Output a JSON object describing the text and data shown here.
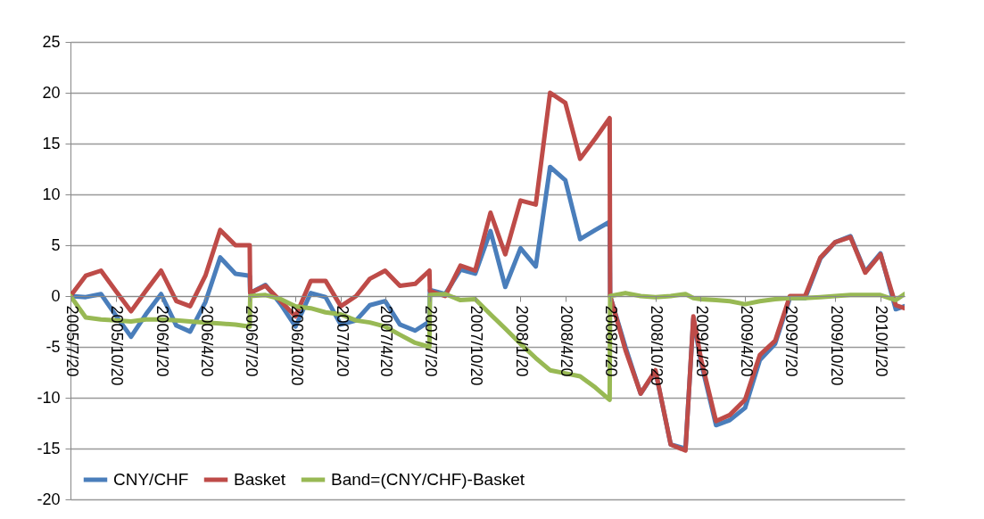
{
  "chart_data": {
    "type": "line",
    "x": [
      "2005-07-20",
      "2005-08-20",
      "2005-09-20",
      "2005-10-20",
      "2005-11-20",
      "2005-12-20",
      "2006-01-20",
      "2006-02-20",
      "2006-03-20",
      "2006-04-20",
      "2006-05-20",
      "2006-06-20",
      "2006-07-19",
      "2006-07-20",
      "2006-08-20",
      "2006-09-20",
      "2006-10-20",
      "2006-11-20",
      "2006-12-20",
      "2007-01-20",
      "2007-02-20",
      "2007-03-20",
      "2007-04-20",
      "2007-05-20",
      "2007-06-20",
      "2007-07-19",
      "2007-07-20",
      "2007-08-20",
      "2007-09-20",
      "2007-10-20",
      "2007-11-20",
      "2007-12-20",
      "2008-01-20",
      "2008-02-20",
      "2008-03-20",
      "2008-04-20",
      "2008-05-20",
      "2008-06-20",
      "2008-07-19",
      "2008-07-20",
      "2008-08-20",
      "2008-09-20",
      "2008-10-20",
      "2008-11-20",
      "2008-12-20",
      "2009-01-05",
      "2009-01-20",
      "2009-02-20",
      "2009-03-20",
      "2009-04-20",
      "2009-05-20",
      "2009-06-20",
      "2009-07-20",
      "2009-08-20",
      "2009-09-20",
      "2009-10-20",
      "2009-11-20",
      "2009-12-20",
      "2010-01-20",
      "2010-02-20",
      "2010-03-10"
    ],
    "series": [
      {
        "name": "CNY/CHF",
        "color": "#4a7ebb",
        "values": [
          0,
          -0.1,
          0.2,
          -1.9,
          -4.0,
          -1.8,
          0.2,
          -2.9,
          -3.5,
          -0.6,
          3.8,
          2.2,
          2.0,
          0.3,
          1.1,
          -0.8,
          -3.0,
          0.3,
          -0.1,
          -2.8,
          -2.4,
          -0.9,
          -0.5,
          -2.8,
          -3.4,
          -2.5,
          0.6,
          0.2,
          2.6,
          2.2,
          6.4,
          0.9,
          4.7,
          2.9,
          12.7,
          11.4,
          5.6,
          6.5,
          7.3,
          0,
          -5.0,
          -9.6,
          -7.4,
          -14.6,
          -15.0,
          -2.2,
          -6.4,
          -12.7,
          -12.2,
          -11.0,
          -6.3,
          -4.7,
          -0.2,
          -0.2,
          3.7,
          5.3,
          5.9,
          2.4,
          4.2,
          -1.3,
          -1.0
        ]
      },
      {
        "name": "Basket",
        "color": "#be4b48",
        "values": [
          0,
          2.0,
          2.5,
          0.5,
          -1.5,
          0.5,
          2.5,
          -0.5,
          -1.0,
          2,
          6.5,
          5,
          5,
          0.3,
          1,
          -0.5,
          -2,
          1.5,
          1.5,
          -1,
          0,
          1.7,
          2.5,
          1,
          1.2,
          2.5,
          0.5,
          0,
          3,
          2.5,
          8.2,
          4.1,
          9.4,
          9,
          20,
          19,
          13.5,
          15.5,
          17.5,
          0,
          -5.3,
          -9.6,
          -7.3,
          -14.6,
          -15.2,
          -2,
          -6.1,
          -12.3,
          -11.7,
          -10.2,
          -5.8,
          -4.4,
          0,
          0,
          3.8,
          5.3,
          5.8,
          2.3,
          4.1,
          -0.9,
          -1.2
        ]
      },
      {
        "name": "Band=(CNY/CHF)-Basket",
        "color": "#98b954",
        "values": [
          0,
          -2.1,
          -2.3,
          -2.4,
          -2.5,
          -2.3,
          -2.3,
          -2.4,
          -2.5,
          -2.6,
          -2.7,
          -2.8,
          -3.0,
          0,
          0.1,
          -0.3,
          -1.0,
          -1.2,
          -1.6,
          -1.8,
          -2.4,
          -2.6,
          -3.0,
          -3.8,
          -4.6,
          -5.0,
          0.1,
          0.2,
          -0.4,
          -0.3,
          -1.8,
          -3.2,
          -4.7,
          -6.1,
          -7.3,
          -7.6,
          -7.9,
          -9.0,
          -10.2,
          0,
          0.3,
          0,
          -0.1,
          0,
          0.2,
          -0.2,
          -0.3,
          -0.4,
          -0.5,
          -0.8,
          -0.5,
          -0.3,
          -0.2,
          -0.2,
          -0.1,
          0,
          0.1,
          0.1,
          0.1,
          -0.4,
          0.2
        ]
      }
    ],
    "xlim": [
      "2005-07-20",
      "2010-03-10"
    ],
    "xticks": [
      {
        "value": "2005-07-20",
        "label": "2005/7/20"
      },
      {
        "value": "2005-10-20",
        "label": "2005/10/20"
      },
      {
        "value": "2006-01-20",
        "label": "2006/1/20"
      },
      {
        "value": "2006-04-20",
        "label": "2006/4/20"
      },
      {
        "value": "2006-07-20",
        "label": "2006/7/20"
      },
      {
        "value": "2006-10-20",
        "label": "2006/10/20"
      },
      {
        "value": "2007-01-20",
        "label": "2007/1/20"
      },
      {
        "value": "2007-04-20",
        "label": "2007/4/20"
      },
      {
        "value": "2007-07-20",
        "label": "2007/7/20"
      },
      {
        "value": "2007-10-20",
        "label": "2007/10/20"
      },
      {
        "value": "2008-01-20",
        "label": "2008/1/20"
      },
      {
        "value": "2008-04-20",
        "label": "2008/4/20"
      },
      {
        "value": "2008-07-20",
        "label": "2008/7/20"
      },
      {
        "value": "2008-10-20",
        "label": "2008/10/20"
      },
      {
        "value": "2009-01-20",
        "label": "2009/1/20"
      },
      {
        "value": "2009-04-20",
        "label": "2009/4/20"
      },
      {
        "value": "2009-07-20",
        "label": "2009/7/20"
      },
      {
        "value": "2009-10-20",
        "label": "2009/10/20"
      },
      {
        "value": "2010-01-20",
        "label": "2010/1/20"
      }
    ],
    "ylim": [
      -20,
      25
    ],
    "yticks": [
      -20,
      -15,
      -10,
      -5,
      0,
      5,
      10,
      15,
      20,
      25
    ],
    "grid": "y",
    "legend": "bottom"
  }
}
